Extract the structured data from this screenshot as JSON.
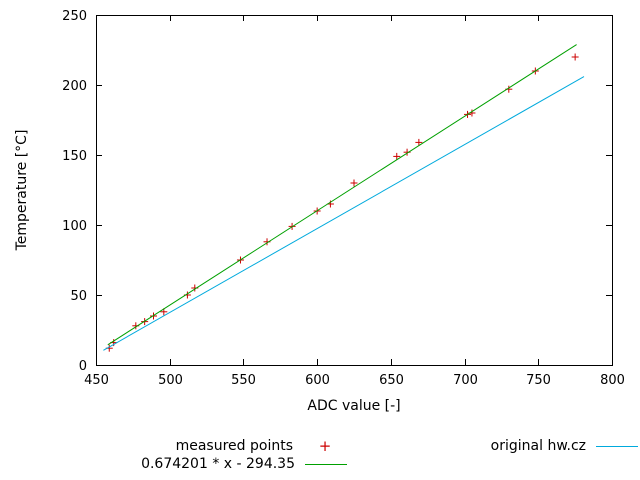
{
  "chart_data": {
    "type": "scatter",
    "title": "",
    "xlabel": "ADC value [-]",
    "ylabel": "Temperature [°C]",
    "xlim": [
      450,
      800
    ],
    "ylim": [
      0,
      250
    ],
    "xticks": [
      450,
      500,
      550,
      600,
      650,
      700,
      750,
      800
    ],
    "yticks": [
      0,
      50,
      100,
      150,
      200,
      250
    ],
    "grid": false,
    "legend_position": "below",
    "series": [
      {
        "name": "measured points",
        "type": "points",
        "marker": "plus",
        "color": "#cc0000",
        "points": [
          [
            459,
            12
          ],
          [
            462,
            16
          ],
          [
            477,
            28
          ],
          [
            483,
            31
          ],
          [
            489,
            35
          ],
          [
            496,
            38
          ],
          [
            512,
            50
          ],
          [
            517,
            55
          ],
          [
            548,
            75
          ],
          [
            566,
            88
          ],
          [
            583,
            99
          ],
          [
            600,
            110
          ],
          [
            609,
            115
          ],
          [
            625,
            130
          ],
          [
            654,
            149
          ],
          [
            661,
            152
          ],
          [
            669,
            159
          ],
          [
            702,
            179
          ],
          [
            705,
            180
          ],
          [
            730,
            197
          ],
          [
            748,
            210
          ],
          [
            775,
            220
          ]
        ]
      },
      {
        "name": "0.674201 * x - 294.35",
        "type": "line",
        "color": "#00a000",
        "slope": 0.674201,
        "intercept": -294.35,
        "points": [
          [
            458,
            14.43
          ],
          [
            776,
            228.83
          ]
        ]
      },
      {
        "name": "original hw.cz",
        "type": "line",
        "color": "#00aadd",
        "points": [
          [
            455,
            10.5
          ],
          [
            781,
            206.0
          ]
        ]
      }
    ]
  }
}
